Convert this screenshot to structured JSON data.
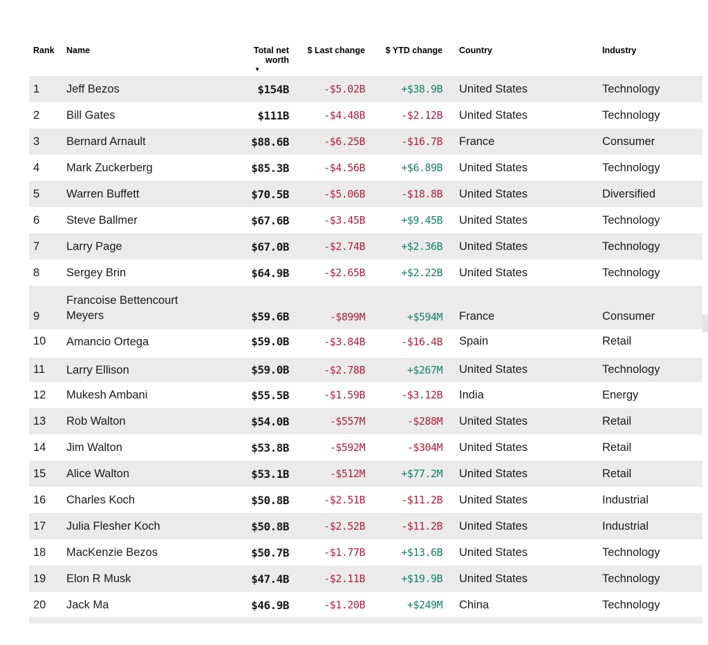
{
  "colors": {
    "negative": "#b21e3c",
    "positive": "#148269",
    "row_shade": "#ebebeb"
  },
  "table": {
    "headers": {
      "rank": "Rank",
      "name": "Name",
      "net_worth": "Total net worth",
      "last_change": "$ Last change",
      "ytd_change": "$ YTD change",
      "country": "Country",
      "industry": "Industry"
    },
    "sort_arrow": "▼",
    "sorted_column": "Total net worth",
    "sort_direction": "descending",
    "rows": [
      {
        "rank": "1",
        "name": "Jeff Bezos",
        "net_worth": "$154B",
        "last_change": "-$5.02B",
        "ytd_change": "+$38.9B",
        "country": "United States",
        "industry": "Technology"
      },
      {
        "rank": "2",
        "name": "Bill Gates",
        "net_worth": "$111B",
        "last_change": "-$4.48B",
        "ytd_change": "-$2.12B",
        "country": "United States",
        "industry": "Technology"
      },
      {
        "rank": "3",
        "name": "Bernard Arnault",
        "net_worth": "$88.6B",
        "last_change": "-$6.25B",
        "ytd_change": "-$16.7B",
        "country": "France",
        "industry": "Consumer"
      },
      {
        "rank": "4",
        "name": "Mark Zuckerberg",
        "net_worth": "$85.3B",
        "last_change": "-$4.56B",
        "ytd_change": "+$6.89B",
        "country": "United States",
        "industry": "Technology"
      },
      {
        "rank": "5",
        "name": "Warren Buffett",
        "net_worth": "$70.5B",
        "last_change": "-$5.06B",
        "ytd_change": "-$18.8B",
        "country": "United States",
        "industry": "Diversified"
      },
      {
        "rank": "6",
        "name": "Steve Ballmer",
        "net_worth": "$67.6B",
        "last_change": "-$3.45B",
        "ytd_change": "+$9.45B",
        "country": "United States",
        "industry": "Technology"
      },
      {
        "rank": "7",
        "name": "Larry Page",
        "net_worth": "$67.0B",
        "last_change": "-$2.74B",
        "ytd_change": "+$2.36B",
        "country": "United States",
        "industry": "Technology"
      },
      {
        "rank": "8",
        "name": "Sergey Brin",
        "net_worth": "$64.9B",
        "last_change": "-$2.65B",
        "ytd_change": "+$2.22B",
        "country": "United States",
        "industry": "Technology"
      },
      {
        "rank": "9",
        "name": "Francoise Bettencourt Meyers",
        "net_worth": "$59.6B",
        "last_change": "-$899M",
        "ytd_change": "+$594M",
        "country": "France",
        "industry": "Consumer"
      },
      {
        "rank": "10",
        "name": "Amancio Ortega",
        "net_worth": "$59.0B",
        "last_change": "-$3.84B",
        "ytd_change": "-$16.4B",
        "country": "Spain",
        "industry": "Retail"
      },
      {
        "rank": "11",
        "name": "Larry Ellison",
        "net_worth": "$59.0B",
        "last_change": "-$2.78B",
        "ytd_change": "+$267M",
        "country": "United States",
        "industry": "Technology"
      },
      {
        "rank": "12",
        "name": "Mukesh Ambani",
        "net_worth": "$55.5B",
        "last_change": "-$1.59B",
        "ytd_change": "-$3.12B",
        "country": "India",
        "industry": "Energy"
      },
      {
        "rank": "13",
        "name": "Rob Walton",
        "net_worth": "$54.0B",
        "last_change": "-$557M",
        "ytd_change": "-$288M",
        "country": "United States",
        "industry": "Retail"
      },
      {
        "rank": "14",
        "name": "Jim Walton",
        "net_worth": "$53.8B",
        "last_change": "-$592M",
        "ytd_change": "-$304M",
        "country": "United States",
        "industry": "Retail"
      },
      {
        "rank": "15",
        "name": "Alice Walton",
        "net_worth": "$53.1B",
        "last_change": "-$512M",
        "ytd_change": "+$77.2M",
        "country": "United States",
        "industry": "Retail"
      },
      {
        "rank": "16",
        "name": "Charles Koch",
        "net_worth": "$50.8B",
        "last_change": "-$2.51B",
        "ytd_change": "-$11.2B",
        "country": "United States",
        "industry": "Industrial"
      },
      {
        "rank": "17",
        "name": "Julia Flesher Koch",
        "net_worth": "$50.8B",
        "last_change": "-$2.52B",
        "ytd_change": "-$11.2B",
        "country": "United States",
        "industry": "Industrial"
      },
      {
        "rank": "18",
        "name": "MacKenzie Bezos",
        "net_worth": "$50.7B",
        "last_change": "-$1.77B",
        "ytd_change": "+$13.6B",
        "country": "United States",
        "industry": "Technology"
      },
      {
        "rank": "19",
        "name": "Elon R Musk",
        "net_worth": "$47.4B",
        "last_change": "-$2.11B",
        "ytd_change": "+$19.9B",
        "country": "United States",
        "industry": "Technology"
      },
      {
        "rank": "20",
        "name": "Jack Ma",
        "net_worth": "$46.9B",
        "last_change": "-$1.20B",
        "ytd_change": "+$249M",
        "country": "China",
        "industry": "Technology"
      }
    ]
  }
}
